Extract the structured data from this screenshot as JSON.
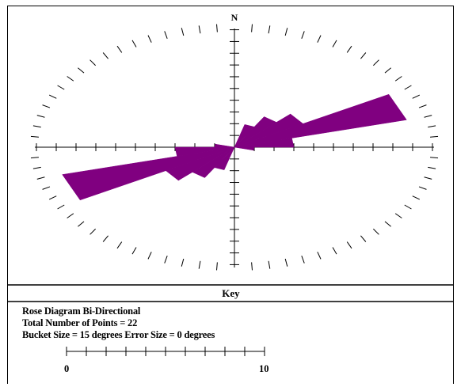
{
  "chart_data": {
    "type": "rose",
    "title": "",
    "north_label": "N",
    "mode": "Bi-Directional",
    "bucket_size_deg": 15,
    "error_size_deg": 0,
    "total_points": 22,
    "scale_max": 10,
    "buckets": [
      {
        "from": 15,
        "to": 30,
        "count": 2
      },
      {
        "from": 30,
        "to": 45,
        "count": 3
      },
      {
        "from": 45,
        "to": 60,
        "count": 4
      },
      {
        "from": 60,
        "to": 75,
        "count": 9
      },
      {
        "from": 75,
        "to": 90,
        "count": 3
      },
      {
        "from": 90,
        "to": 105,
        "count": 1
      }
    ]
  },
  "key": {
    "title": "Key",
    "line1": "Rose Diagram  Bi-Directional",
    "line2": "Total Number of Points = 22",
    "line3": "Bucket Size = 15 degrees   Error Size = 0 degrees",
    "scale_min_label": "0",
    "scale_max_label": "10"
  },
  "colors": {
    "petal": "#800080",
    "lines": "#000000"
  }
}
